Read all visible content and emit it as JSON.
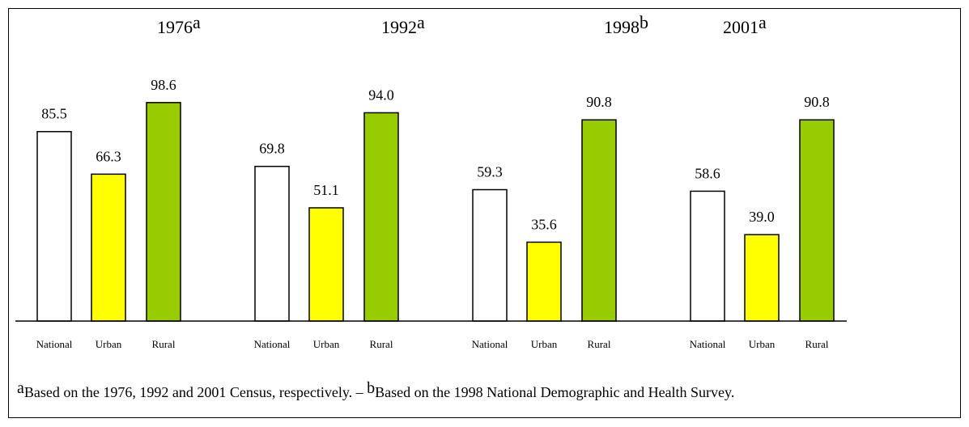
{
  "chart_data": {
    "type": "bar",
    "categories": [
      "1976",
      "1992",
      "1998",
      "2001"
    ],
    "category_notes": [
      "a",
      "a",
      "b",
      "a"
    ],
    "series": [
      {
        "name": "National",
        "color": "#ffffff",
        "values": [
          85.5,
          69.8,
          59.3,
          58.6
        ],
        "value_labels": [
          "85.5",
          "69.8",
          "59.3",
          "58.6"
        ]
      },
      {
        "name": "Urban",
        "color": "#ffff00",
        "values": [
          66.3,
          51.1,
          35.6,
          39.0
        ],
        "value_labels": [
          "66.3",
          "51.1",
          "35.6",
          "39.0"
        ]
      },
      {
        "name": "Rural",
        "color": "#99cc00",
        "values": [
          98.6,
          94.0,
          90.8,
          90.8
        ],
        "value_labels": [
          "98.6",
          "94.0",
          "90.8",
          "90.8"
        ]
      }
    ],
    "footnotes": [
      {
        "mark": "a",
        "text": "Based on the 1976, 1992 and 2001 Census, respectively. – "
      },
      {
        "mark": "b",
        "text": "Based on the 1998 National Demographic and Health Survey."
      }
    ]
  }
}
